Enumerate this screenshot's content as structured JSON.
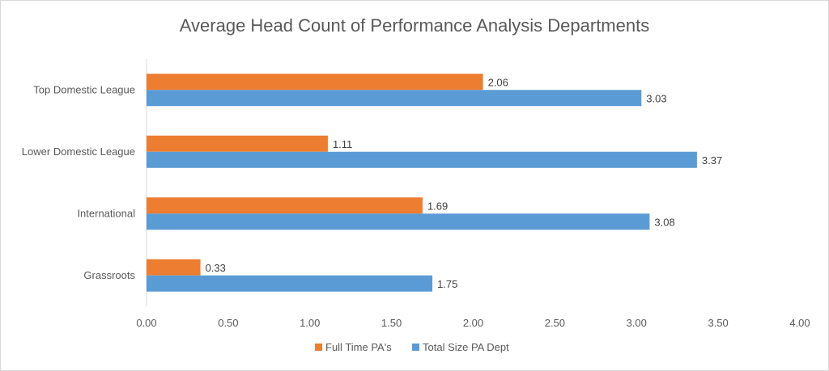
{
  "chart_data": {
    "type": "bar",
    "orientation": "horizontal",
    "title": "Average Head Count of Performance Analysis Departments",
    "categories": [
      "Top Domestic League",
      "Lower Domestic League",
      "International",
      "Grassroots"
    ],
    "series": [
      {
        "name": "Full Time PA's",
        "color": "#ED7D31",
        "values": [
          2.06,
          1.11,
          1.69,
          0.33
        ],
        "labels": [
          "2.06",
          "1.11",
          "1.69",
          "0.33"
        ]
      },
      {
        "name": "Total Size PA Dept",
        "color": "#5B9BD5",
        "values": [
          3.03,
          3.37,
          3.08,
          1.75
        ],
        "labels": [
          "3.03",
          "3.37",
          "3.08",
          "1.75"
        ]
      }
    ],
    "xlim": [
      0,
      4
    ],
    "x_ticks": [
      "0.00",
      "0.50",
      "1.00",
      "1.50",
      "2.00",
      "2.50",
      "3.00",
      "3.50",
      "4.00"
    ],
    "gridlines": false,
    "legend_position": "bottom"
  }
}
